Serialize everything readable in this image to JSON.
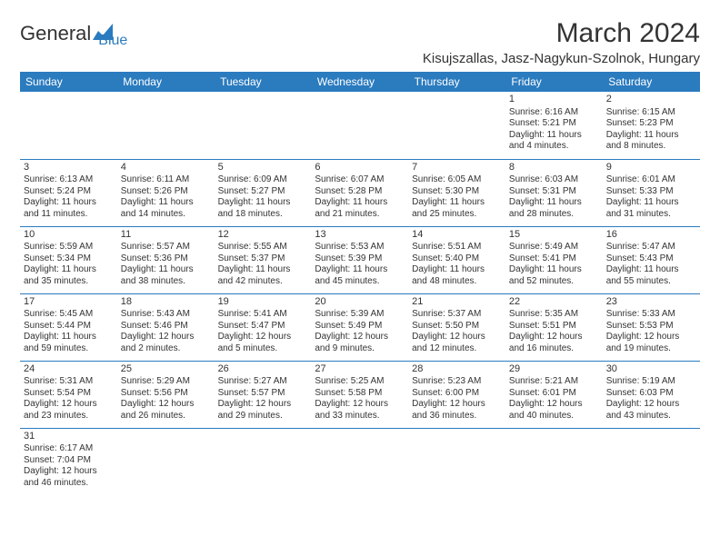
{
  "logo": {
    "word1": "General",
    "word2": "Blue"
  },
  "title": "March 2024",
  "location": "Kisujszallas, Jasz-Nagykun-Szolnok, Hungary",
  "weekdays": [
    "Sunday",
    "Monday",
    "Tuesday",
    "Wednesday",
    "Thursday",
    "Friday",
    "Saturday"
  ],
  "colors": {
    "header_bg": "#2b7bbf",
    "text": "#333333",
    "rule": "#2b7bbf"
  },
  "weeks": [
    [
      null,
      null,
      null,
      null,
      null,
      {
        "n": "1",
        "sr": "Sunrise: 6:16 AM",
        "ss": "Sunset: 5:21 PM",
        "dl": "Daylight: 11 hours and 4 minutes."
      },
      {
        "n": "2",
        "sr": "Sunrise: 6:15 AM",
        "ss": "Sunset: 5:23 PM",
        "dl": "Daylight: 11 hours and 8 minutes."
      }
    ],
    [
      {
        "n": "3",
        "sr": "Sunrise: 6:13 AM",
        "ss": "Sunset: 5:24 PM",
        "dl": "Daylight: 11 hours and 11 minutes."
      },
      {
        "n": "4",
        "sr": "Sunrise: 6:11 AM",
        "ss": "Sunset: 5:26 PM",
        "dl": "Daylight: 11 hours and 14 minutes."
      },
      {
        "n": "5",
        "sr": "Sunrise: 6:09 AM",
        "ss": "Sunset: 5:27 PM",
        "dl": "Daylight: 11 hours and 18 minutes."
      },
      {
        "n": "6",
        "sr": "Sunrise: 6:07 AM",
        "ss": "Sunset: 5:28 PM",
        "dl": "Daylight: 11 hours and 21 minutes."
      },
      {
        "n": "7",
        "sr": "Sunrise: 6:05 AM",
        "ss": "Sunset: 5:30 PM",
        "dl": "Daylight: 11 hours and 25 minutes."
      },
      {
        "n": "8",
        "sr": "Sunrise: 6:03 AM",
        "ss": "Sunset: 5:31 PM",
        "dl": "Daylight: 11 hours and 28 minutes."
      },
      {
        "n": "9",
        "sr": "Sunrise: 6:01 AM",
        "ss": "Sunset: 5:33 PM",
        "dl": "Daylight: 11 hours and 31 minutes."
      }
    ],
    [
      {
        "n": "10",
        "sr": "Sunrise: 5:59 AM",
        "ss": "Sunset: 5:34 PM",
        "dl": "Daylight: 11 hours and 35 minutes."
      },
      {
        "n": "11",
        "sr": "Sunrise: 5:57 AM",
        "ss": "Sunset: 5:36 PM",
        "dl": "Daylight: 11 hours and 38 minutes."
      },
      {
        "n": "12",
        "sr": "Sunrise: 5:55 AM",
        "ss": "Sunset: 5:37 PM",
        "dl": "Daylight: 11 hours and 42 minutes."
      },
      {
        "n": "13",
        "sr": "Sunrise: 5:53 AM",
        "ss": "Sunset: 5:39 PM",
        "dl": "Daylight: 11 hours and 45 minutes."
      },
      {
        "n": "14",
        "sr": "Sunrise: 5:51 AM",
        "ss": "Sunset: 5:40 PM",
        "dl": "Daylight: 11 hours and 48 minutes."
      },
      {
        "n": "15",
        "sr": "Sunrise: 5:49 AM",
        "ss": "Sunset: 5:41 PM",
        "dl": "Daylight: 11 hours and 52 minutes."
      },
      {
        "n": "16",
        "sr": "Sunrise: 5:47 AM",
        "ss": "Sunset: 5:43 PM",
        "dl": "Daylight: 11 hours and 55 minutes."
      }
    ],
    [
      {
        "n": "17",
        "sr": "Sunrise: 5:45 AM",
        "ss": "Sunset: 5:44 PM",
        "dl": "Daylight: 11 hours and 59 minutes."
      },
      {
        "n": "18",
        "sr": "Sunrise: 5:43 AM",
        "ss": "Sunset: 5:46 PM",
        "dl": "Daylight: 12 hours and 2 minutes."
      },
      {
        "n": "19",
        "sr": "Sunrise: 5:41 AM",
        "ss": "Sunset: 5:47 PM",
        "dl": "Daylight: 12 hours and 5 minutes."
      },
      {
        "n": "20",
        "sr": "Sunrise: 5:39 AM",
        "ss": "Sunset: 5:49 PM",
        "dl": "Daylight: 12 hours and 9 minutes."
      },
      {
        "n": "21",
        "sr": "Sunrise: 5:37 AM",
        "ss": "Sunset: 5:50 PM",
        "dl": "Daylight: 12 hours and 12 minutes."
      },
      {
        "n": "22",
        "sr": "Sunrise: 5:35 AM",
        "ss": "Sunset: 5:51 PM",
        "dl": "Daylight: 12 hours and 16 minutes."
      },
      {
        "n": "23",
        "sr": "Sunrise: 5:33 AM",
        "ss": "Sunset: 5:53 PM",
        "dl": "Daylight: 12 hours and 19 minutes."
      }
    ],
    [
      {
        "n": "24",
        "sr": "Sunrise: 5:31 AM",
        "ss": "Sunset: 5:54 PM",
        "dl": "Daylight: 12 hours and 23 minutes."
      },
      {
        "n": "25",
        "sr": "Sunrise: 5:29 AM",
        "ss": "Sunset: 5:56 PM",
        "dl": "Daylight: 12 hours and 26 minutes."
      },
      {
        "n": "26",
        "sr": "Sunrise: 5:27 AM",
        "ss": "Sunset: 5:57 PM",
        "dl": "Daylight: 12 hours and 29 minutes."
      },
      {
        "n": "27",
        "sr": "Sunrise: 5:25 AM",
        "ss": "Sunset: 5:58 PM",
        "dl": "Daylight: 12 hours and 33 minutes."
      },
      {
        "n": "28",
        "sr": "Sunrise: 5:23 AM",
        "ss": "Sunset: 6:00 PM",
        "dl": "Daylight: 12 hours and 36 minutes."
      },
      {
        "n": "29",
        "sr": "Sunrise: 5:21 AM",
        "ss": "Sunset: 6:01 PM",
        "dl": "Daylight: 12 hours and 40 minutes."
      },
      {
        "n": "30",
        "sr": "Sunrise: 5:19 AM",
        "ss": "Sunset: 6:03 PM",
        "dl": "Daylight: 12 hours and 43 minutes."
      }
    ],
    [
      {
        "n": "31",
        "sr": "Sunrise: 6:17 AM",
        "ss": "Sunset: 7:04 PM",
        "dl": "Daylight: 12 hours and 46 minutes."
      },
      null,
      null,
      null,
      null,
      null,
      null
    ]
  ]
}
